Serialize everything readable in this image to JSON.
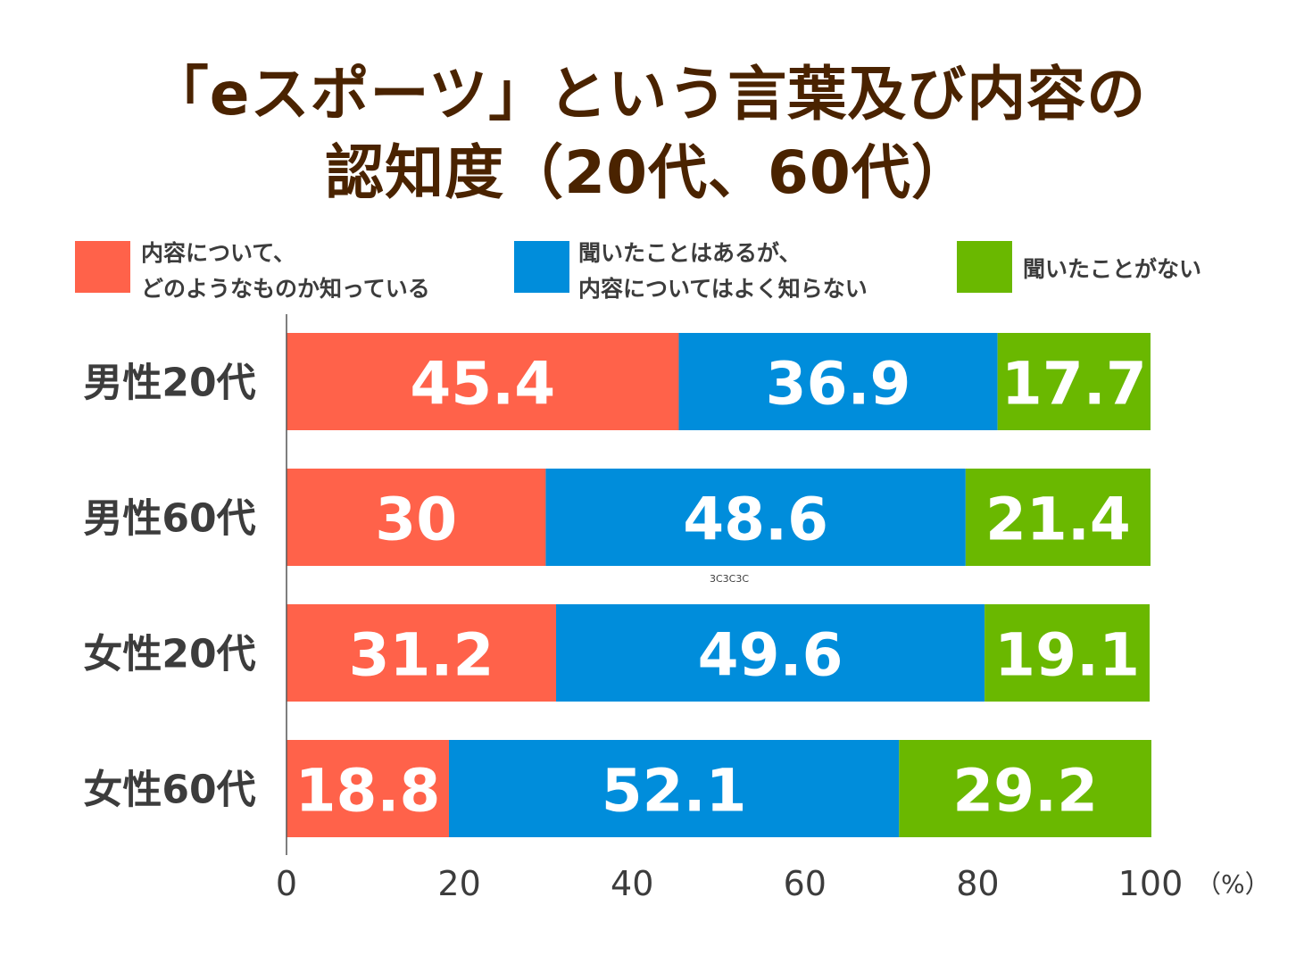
{
  "title_line1": "「eスポーツ」という言葉及び内容の",
  "title_line2": "認知度（20代、60代）",
  "artifact_text": "3C3C3C",
  "chart_data": {
    "type": "bar",
    "orientation": "horizontal",
    "stacked": true,
    "categories": [
      "男性20代",
      "男性60代",
      "女性20代",
      "女性60代"
    ],
    "series": [
      {
        "name": "内容について、\nどのようなものか知っている",
        "color": "#ff624a",
        "values": [
          45.4,
          30,
          31.2,
          18.8
        ]
      },
      {
        "name": "聞いたことはあるが、\n内容についてはよく知らない",
        "color": "#008ddb",
        "values": [
          36.9,
          48.6,
          49.6,
          52.1
        ]
      },
      {
        "name": "聞いたことがない",
        "color": "#6ab800",
        "values": [
          17.7,
          21.4,
          19.1,
          29.2
        ]
      }
    ],
    "xlim": [
      0,
      100
    ],
    "xticks": [
      "0",
      "20",
      "40",
      "60",
      "80",
      "100"
    ],
    "xunit": "（%）",
    "grid": false,
    "legend": "top"
  }
}
